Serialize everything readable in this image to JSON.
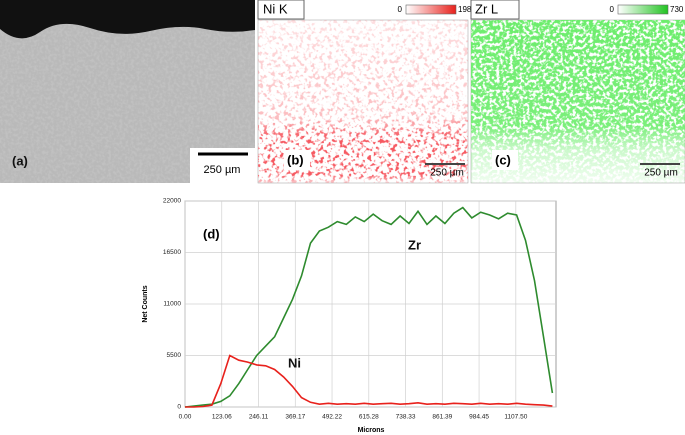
{
  "panels": [
    {
      "label": "(a)",
      "scale": "250 µm"
    },
    {
      "title": "Ni K",
      "range_min": "0",
      "range_max": "198",
      "label": "(b)",
      "scale": "250 µm"
    },
    {
      "title": "Zr L",
      "range_min": "0",
      "range_max": "730",
      "label": "(c)",
      "scale": "250 µm"
    }
  ],
  "chart_data": {
    "type": "line",
    "annotation": "(d)",
    "x_label": "Microns",
    "y_label": "Net Counts",
    "x": [
      0,
      30,
      60,
      90,
      120,
      150,
      180,
      210,
      240,
      270,
      300,
      330,
      360,
      390,
      420,
      450,
      480,
      510,
      540,
      570,
      600,
      630,
      660,
      690,
      720,
      750,
      780,
      810,
      840,
      870,
      900,
      930,
      960,
      990,
      1020,
      1050,
      1080,
      1110,
      1140,
      1170,
      1200,
      1230
    ],
    "series": [
      {
        "name": "Zr",
        "color": "#2e8b2e",
        "values": [
          0,
          100,
          200,
          300,
          600,
          1200,
          2500,
          4000,
          5500,
          6500,
          7500,
          9500,
          11500,
          14000,
          17500,
          18800,
          19200,
          19800,
          19500,
          20300,
          19800,
          20600,
          19900,
          19500,
          20400,
          19600,
          20900,
          19500,
          20400,
          19600,
          20700,
          21300,
          20200,
          20800,
          20500,
          20100,
          20700,
          20500,
          17800,
          13500,
          7500,
          1500
        ]
      },
      {
        "name": "Ni",
        "color": "#e8211c",
        "values": [
          0,
          0,
          50,
          200,
          2500,
          5500,
          5000,
          4800,
          4500,
          4400,
          4000,
          3200,
          2200,
          1000,
          500,
          300,
          400,
          300,
          350,
          300,
          400,
          300,
          350,
          400,
          300,
          350,
          450,
          300,
          350,
          300,
          400,
          350,
          300,
          400,
          300,
          350,
          300,
          400,
          300,
          250,
          200,
          100
        ]
      }
    ],
    "xlim": [
      0,
      1242
    ],
    "ylim": [
      0,
      22000
    ],
    "xticks": [
      {
        "value": 0,
        "label": "0.00"
      },
      123.06,
      246.11,
      369.17,
      492.22,
      615.28,
      738.33,
      861.39,
      984.45,
      {
        "value": 1107.5,
        "label": "1107.50"
      }
    ],
    "yticks": [
      0,
      5500,
      11000,
      16500,
      22000
    ],
    "grid": true
  }
}
